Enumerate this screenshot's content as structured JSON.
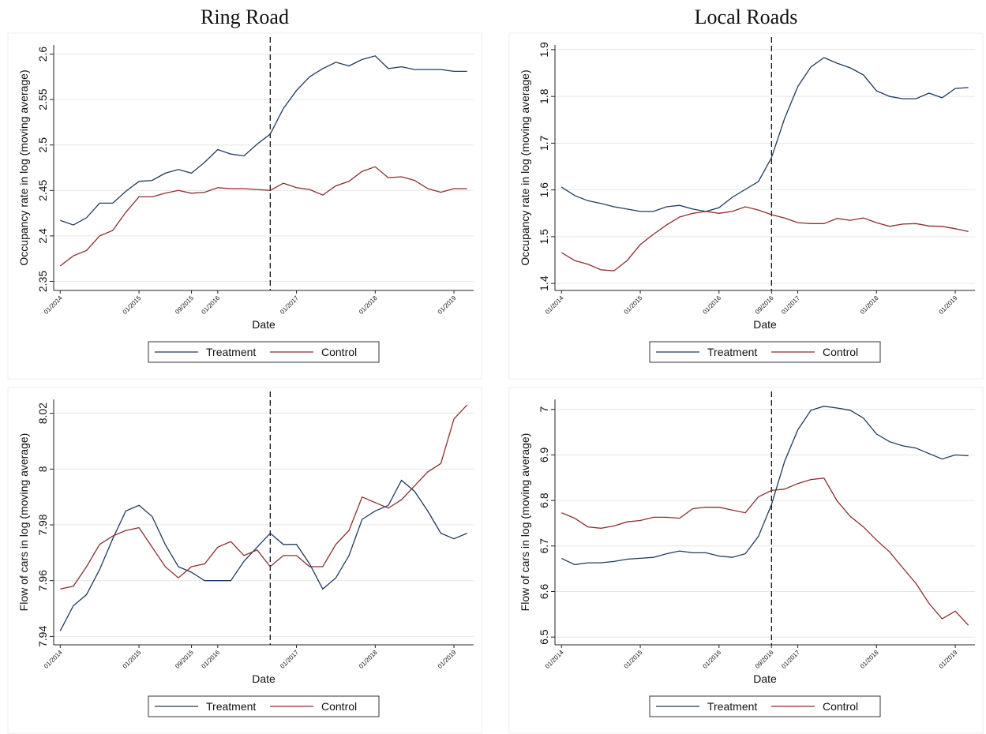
{
  "chart_data": [
    {
      "type": "line",
      "title": "Ring Road",
      "xlabel": "Date",
      "ylabel": "Occupancy rate in log (moving average)",
      "grid": true,
      "event_x": "09/2016",
      "x": [
        "01/2014",
        "03/2014",
        "05/2014",
        "07/2014",
        "09/2014",
        "11/2014",
        "01/2015",
        "03/2015",
        "05/2015",
        "07/2015",
        "09/2015",
        "11/2015",
        "01/2016",
        "03/2016",
        "05/2016",
        "07/2016",
        "09/2016",
        "11/2016",
        "01/2017",
        "03/2017",
        "05/2017",
        "07/2017",
        "09/2017",
        "11/2017",
        "01/2018",
        "03/2018",
        "05/2018",
        "07/2018",
        "09/2018",
        "11/2018",
        "01/2019",
        "03/2019"
      ],
      "xlim": [
        "12/2013",
        "04/2019"
      ],
      "xticks": [
        "01/2014",
        "01/2015",
        "09/2015",
        "01/2016",
        "01/2017",
        "01/2018",
        "01/2019"
      ],
      "ylim": [
        2.34,
        2.61
      ],
      "yticks": [
        2.35,
        2.4,
        2.45,
        2.5,
        2.55,
        2.6
      ],
      "series": [
        {
          "name": "Treatment",
          "color": "#1f3b5c",
          "values": [
            2.417,
            2.412,
            2.42,
            2.436,
            2.436,
            2.449,
            2.46,
            2.461,
            2.469,
            2.473,
            2.469,
            2.481,
            2.495,
            2.49,
            2.488,
            2.501,
            2.512,
            2.54,
            2.56,
            2.575,
            2.584,
            2.591,
            2.587,
            2.594,
            2.598,
            2.584,
            2.586,
            2.583,
            2.583,
            2.583,
            2.581,
            2.581
          ]
        },
        {
          "name": "Control",
          "color": "#8b2f2f",
          "values": [
            2.367,
            2.378,
            2.384,
            2.4,
            2.406,
            2.426,
            2.443,
            2.443,
            2.447,
            2.45,
            2.447,
            2.448,
            2.453,
            2.452,
            2.452,
            2.451,
            2.45,
            2.458,
            2.453,
            2.451,
            2.445,
            2.455,
            2.46,
            2.471,
            2.476,
            2.464,
            2.465,
            2.461,
            2.452,
            2.448,
            2.452,
            2.452
          ]
        }
      ]
    },
    {
      "type": "line",
      "title": "Local Roads",
      "xlabel": "Date",
      "ylabel": "Occupancy rate in log (moving average)",
      "grid": true,
      "event_x": "09/2016",
      "x": [
        "01/2014",
        "03/2014",
        "05/2014",
        "07/2014",
        "09/2014",
        "11/2014",
        "01/2015",
        "03/2015",
        "05/2015",
        "07/2015",
        "09/2015",
        "11/2015",
        "01/2016",
        "03/2016",
        "05/2016",
        "07/2016",
        "09/2016",
        "11/2016",
        "01/2017",
        "03/2017",
        "05/2017",
        "07/2017",
        "09/2017",
        "11/2017",
        "01/2018",
        "03/2018",
        "05/2018",
        "07/2018",
        "09/2018",
        "11/2018",
        "01/2019",
        "03/2019"
      ],
      "xlim": [
        "12/2013",
        "04/2019"
      ],
      "xticks": [
        "01/2014",
        "01/2015",
        "01/2016",
        "09/2016",
        "01/2017",
        "01/2018",
        "01/2019"
      ],
      "ylim": [
        1.385,
        1.91
      ],
      "yticks": [
        1.4,
        1.5,
        1.6,
        1.7,
        1.8,
        1.9
      ],
      "series": [
        {
          "name": "Treatment",
          "color": "#1f3b5c",
          "values": [
            1.606,
            1.588,
            1.577,
            1.571,
            1.564,
            1.559,
            1.554,
            1.554,
            1.564,
            1.567,
            1.559,
            1.554,
            1.562,
            1.584,
            1.601,
            1.618,
            1.669,
            1.753,
            1.821,
            1.863,
            1.883,
            1.871,
            1.861,
            1.846,
            1.812,
            1.8,
            1.795,
            1.795,
            1.807,
            1.797,
            1.817,
            1.819
          ]
        },
        {
          "name": "Control",
          "color": "#8b2f2f",
          "values": [
            1.466,
            1.449,
            1.441,
            1.429,
            1.427,
            1.449,
            1.483,
            1.505,
            1.525,
            1.542,
            1.55,
            1.554,
            1.55,
            1.554,
            1.564,
            1.557,
            1.547,
            1.54,
            1.53,
            1.528,
            1.528,
            1.539,
            1.535,
            1.54,
            1.53,
            1.522,
            1.527,
            1.528,
            1.523,
            1.522,
            1.517,
            1.511
          ]
        }
      ]
    },
    {
      "type": "line",
      "xlabel": "Date",
      "ylabel": "Flow of cars in log (moving average)",
      "grid": true,
      "event_x": "09/2016",
      "x": [
        "01/2014",
        "03/2014",
        "05/2014",
        "07/2014",
        "09/2014",
        "11/2014",
        "01/2015",
        "03/2015",
        "05/2015",
        "07/2015",
        "09/2015",
        "11/2015",
        "01/2016",
        "03/2016",
        "05/2016",
        "07/2016",
        "09/2016",
        "11/2016",
        "01/2017",
        "03/2017",
        "05/2017",
        "07/2017",
        "09/2017",
        "11/2017",
        "01/2018",
        "03/2018",
        "05/2018",
        "07/2018",
        "09/2018",
        "11/2018",
        "01/2019",
        "03/2019"
      ],
      "xlim": [
        "12/2013",
        "04/2019"
      ],
      "xticks": [
        "01/2014",
        "01/2015",
        "09/2015",
        "01/2016",
        "01/2017",
        "01/2018",
        "01/2019"
      ],
      "ylim": [
        7.937,
        8.025
      ],
      "yticks": [
        7.94,
        7.96,
        7.98,
        8,
        8.02
      ],
      "series": [
        {
          "name": "Treatment",
          "color": "#1f3b5c",
          "values": [
            7.942,
            7.951,
            7.955,
            7.964,
            7.975,
            7.985,
            7.987,
            7.983,
            7.973,
            7.965,
            7.963,
            7.96,
            7.96,
            7.96,
            7.967,
            7.972,
            7.977,
            7.973,
            7.973,
            7.966,
            7.957,
            7.961,
            7.969,
            7.982,
            7.985,
            7.987,
            7.996,
            7.992,
            7.985,
            7.977,
            7.975,
            7.977
          ]
        },
        {
          "name": "Control",
          "color": "#8b2f2f",
          "values": [
            7.957,
            7.958,
            7.965,
            7.973,
            7.976,
            7.978,
            7.979,
            7.972,
            7.965,
            7.961,
            7.965,
            7.966,
            7.972,
            7.974,
            7.969,
            7.971,
            7.965,
            7.969,
            7.969,
            7.965,
            7.965,
            7.973,
            7.978,
            7.99,
            7.988,
            7.986,
            7.989,
            7.994,
            7.999,
            8.002,
            8.018,
            8.023
          ]
        }
      ]
    },
    {
      "type": "line",
      "xlabel": "Date",
      "ylabel": "Flow of cars in log (moving average)",
      "grid": true,
      "event_x": "09/2016",
      "x": [
        "01/2014",
        "03/2014",
        "05/2014",
        "07/2014",
        "09/2014",
        "11/2014",
        "01/2015",
        "03/2015",
        "05/2015",
        "07/2015",
        "09/2015",
        "11/2015",
        "01/2016",
        "03/2016",
        "05/2016",
        "07/2016",
        "09/2016",
        "11/2016",
        "01/2017",
        "03/2017",
        "05/2017",
        "07/2017",
        "09/2017",
        "11/2017",
        "01/2018",
        "03/2018",
        "05/2018",
        "07/2018",
        "09/2018",
        "11/2018",
        "01/2019",
        "03/2019"
      ],
      "xlim": [
        "12/2013",
        "04/2019"
      ],
      "xticks": [
        "01/2014",
        "01/2015",
        "01/2016",
        "09/2016",
        "01/2017",
        "01/2018",
        "01/2019"
      ],
      "ylim": [
        6.483,
        7.022
      ],
      "yticks": [
        6.5,
        6.6,
        6.7,
        6.8,
        6.9,
        7
      ],
      "series": [
        {
          "name": "Treatment",
          "color": "#1f3b5c",
          "values": [
            6.673,
            6.659,
            6.663,
            6.663,
            6.666,
            6.671,
            6.673,
            6.675,
            6.683,
            6.689,
            6.685,
            6.685,
            6.678,
            6.675,
            6.683,
            6.721,
            6.791,
            6.886,
            6.955,
            6.998,
            7.007,
            7.003,
            6.998,
            6.981,
            6.946,
            6.929,
            6.92,
            6.915,
            6.903,
            6.891,
            6.9,
            6.898
          ]
        },
        {
          "name": "Control",
          "color": "#8b2f2f",
          "values": [
            6.773,
            6.761,
            6.742,
            6.739,
            6.744,
            6.753,
            6.756,
            6.763,
            6.763,
            6.761,
            6.782,
            6.785,
            6.785,
            6.779,
            6.773,
            6.808,
            6.822,
            6.825,
            6.837,
            6.846,
            6.849,
            6.799,
            6.765,
            6.742,
            6.713,
            6.687,
            6.652,
            6.618,
            6.574,
            6.54,
            6.557,
            6.526
          ]
        }
      ]
    }
  ]
}
